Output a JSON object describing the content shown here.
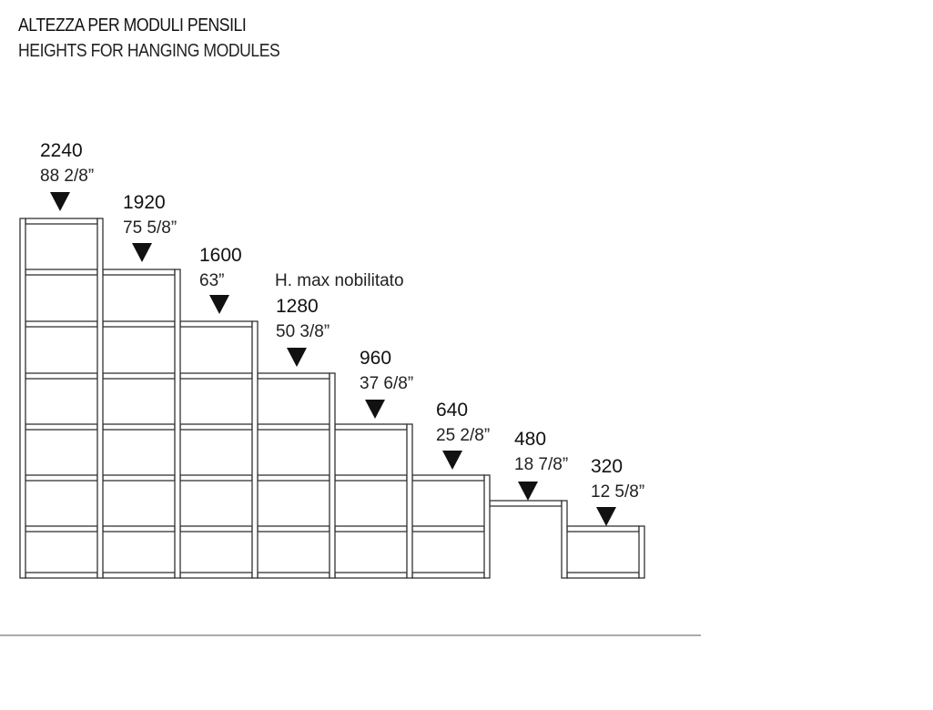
{
  "title": "ALTEZZA PER MODULI PENSILI",
  "subtitle": "HEIGHTS FOR HANGING MODULES",
  "note": "H. max nobilitato",
  "line_color": "#333333",
  "modules": [
    {
      "mm": "2240",
      "inch": "88 2/8”"
    },
    {
      "mm": "1920",
      "inch": "75 5/8”"
    },
    {
      "mm": "1600",
      "inch": "63”"
    },
    {
      "mm": "1280",
      "inch": "50 3/8”"
    },
    {
      "mm": "960",
      "inch": "37 6/8”"
    },
    {
      "mm": "640",
      "inch": "25 2/8”"
    },
    {
      "mm": "480",
      "inch": "18 7/8”"
    },
    {
      "mm": "320",
      "inch": "12 5/8”"
    }
  ]
}
